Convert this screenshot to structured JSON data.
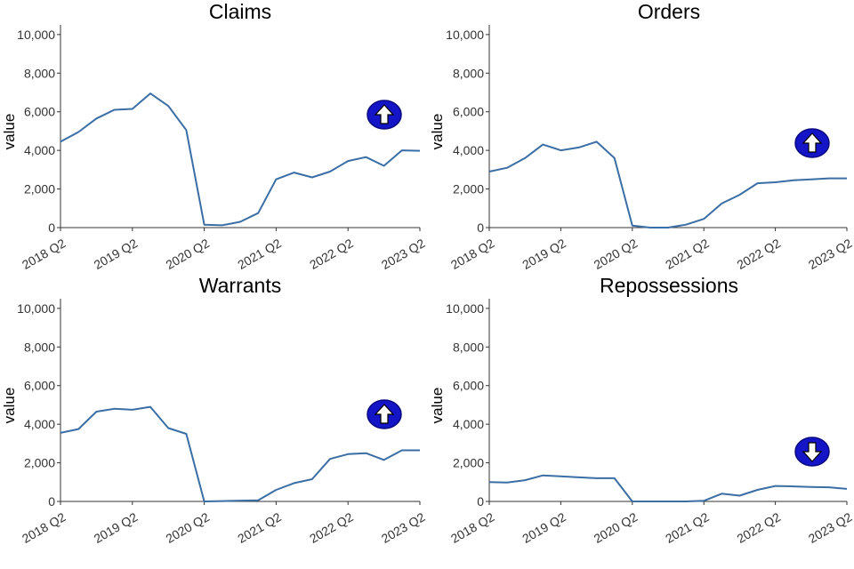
{
  "chart_data": [
    {
      "type": "line",
      "title": "Claims",
      "ylabel": "value",
      "ylim": [
        0,
        10500
      ],
      "yticks": [
        0,
        2000,
        4000,
        6000,
        8000,
        10000
      ],
      "ytick_labels": [
        "0",
        "2,000",
        "4,000",
        "6,000",
        "8,000",
        "10,000"
      ],
      "xlim": [
        0,
        20
      ],
      "xticks": [
        0,
        4,
        8,
        12,
        16,
        20
      ],
      "xtick_labels": [
        "2018 Q2",
        "2019 Q2",
        "2020 Q2",
        "2021 Q2",
        "2022 Q2",
        "2023 Q2"
      ],
      "x": [
        0,
        1,
        2,
        3,
        4,
        5,
        6,
        7,
        8,
        9,
        10,
        11,
        12,
        13,
        14,
        15,
        16,
        17,
        18,
        19,
        20
      ],
      "values": [
        4450,
        4950,
        5650,
        6100,
        6150,
        6950,
        6300,
        5050,
        150,
        120,
        300,
        750,
        2500,
        2850,
        2600,
        2900,
        3450,
        3650,
        3200,
        4000,
        3980
      ],
      "indicator": "arrow-up-icon",
      "color": "#3a6ea5"
    },
    {
      "type": "line",
      "title": "Orders",
      "ylabel": "value",
      "ylim": [
        0,
        10500
      ],
      "yticks": [
        0,
        2000,
        4000,
        6000,
        8000,
        10000
      ],
      "ytick_labels": [
        "0",
        "2,000",
        "4,000",
        "6,000",
        "8,000",
        "10,000"
      ],
      "xlim": [
        0,
        20
      ],
      "xticks": [
        0,
        4,
        8,
        12,
        16,
        20
      ],
      "xtick_labels": [
        "2018 Q2",
        "2019 Q2",
        "2020 Q2",
        "2021 Q2",
        "2022 Q2",
        "2023 Q2"
      ],
      "x": [
        0,
        1,
        2,
        3,
        4,
        5,
        6,
        7,
        8,
        9,
        10,
        11,
        12,
        13,
        14,
        15,
        16,
        17,
        18,
        19,
        20
      ],
      "values": [
        2900,
        3100,
        3600,
        4300,
        4000,
        4150,
        4450,
        3600,
        100,
        0,
        0,
        150,
        450,
        1250,
        1700,
        2300,
        2350,
        2450,
        2500,
        2550,
        2550
      ],
      "indicator": "arrow-up-icon",
      "color": "#3a6ea5"
    },
    {
      "type": "line",
      "title": "Warrants",
      "ylabel": "value",
      "ylim": [
        0,
        10500
      ],
      "yticks": [
        0,
        2000,
        4000,
        6000,
        8000,
        10000
      ],
      "ytick_labels": [
        "0",
        "2,000",
        "4,000",
        "6,000",
        "8,000",
        "10,000"
      ],
      "xlim": [
        0,
        20
      ],
      "xticks": [
        0,
        4,
        8,
        12,
        16,
        20
      ],
      "xtick_labels": [
        "2018 Q2",
        "2019 Q2",
        "2020 Q2",
        "2021 Q2",
        "2022 Q2",
        "2023 Q2"
      ],
      "x": [
        0,
        1,
        2,
        3,
        4,
        5,
        6,
        7,
        8,
        9,
        10,
        11,
        12,
        13,
        14,
        15,
        16,
        17,
        18,
        19,
        20
      ],
      "values": [
        3550,
        3750,
        4650,
        4800,
        4750,
        4900,
        3800,
        3500,
        0,
        20,
        40,
        60,
        600,
        950,
        1150,
        2200,
        2450,
        2500,
        2150,
        2650,
        2650
      ],
      "indicator": "arrow-up-icon",
      "color": "#3a6ea5"
    },
    {
      "type": "line",
      "title": "Repossessions",
      "ylabel": "value",
      "ylim": [
        0,
        10500
      ],
      "yticks": [
        0,
        2000,
        4000,
        6000,
        8000,
        10000
      ],
      "ytick_labels": [
        "0",
        "2,000",
        "4,000",
        "6,000",
        "8,000",
        "10,000"
      ],
      "xlim": [
        0,
        20
      ],
      "xticks": [
        0,
        4,
        8,
        12,
        16,
        20
      ],
      "xtick_labels": [
        "2018 Q2",
        "2019 Q2",
        "2020 Q2",
        "2021 Q2",
        "2022 Q2",
        "2023 Q2"
      ],
      "x": [
        0,
        1,
        2,
        3,
        4,
        5,
        6,
        7,
        8,
        9,
        10,
        11,
        12,
        13,
        14,
        15,
        16,
        17,
        18,
        19,
        20
      ],
      "values": [
        1000,
        980,
        1100,
        1350,
        1300,
        1250,
        1200,
        1200,
        0,
        0,
        0,
        0,
        30,
        400,
        300,
        600,
        800,
        780,
        750,
        730,
        650
      ],
      "indicator": "arrow-down-icon",
      "color": "#3a6ea5"
    }
  ]
}
